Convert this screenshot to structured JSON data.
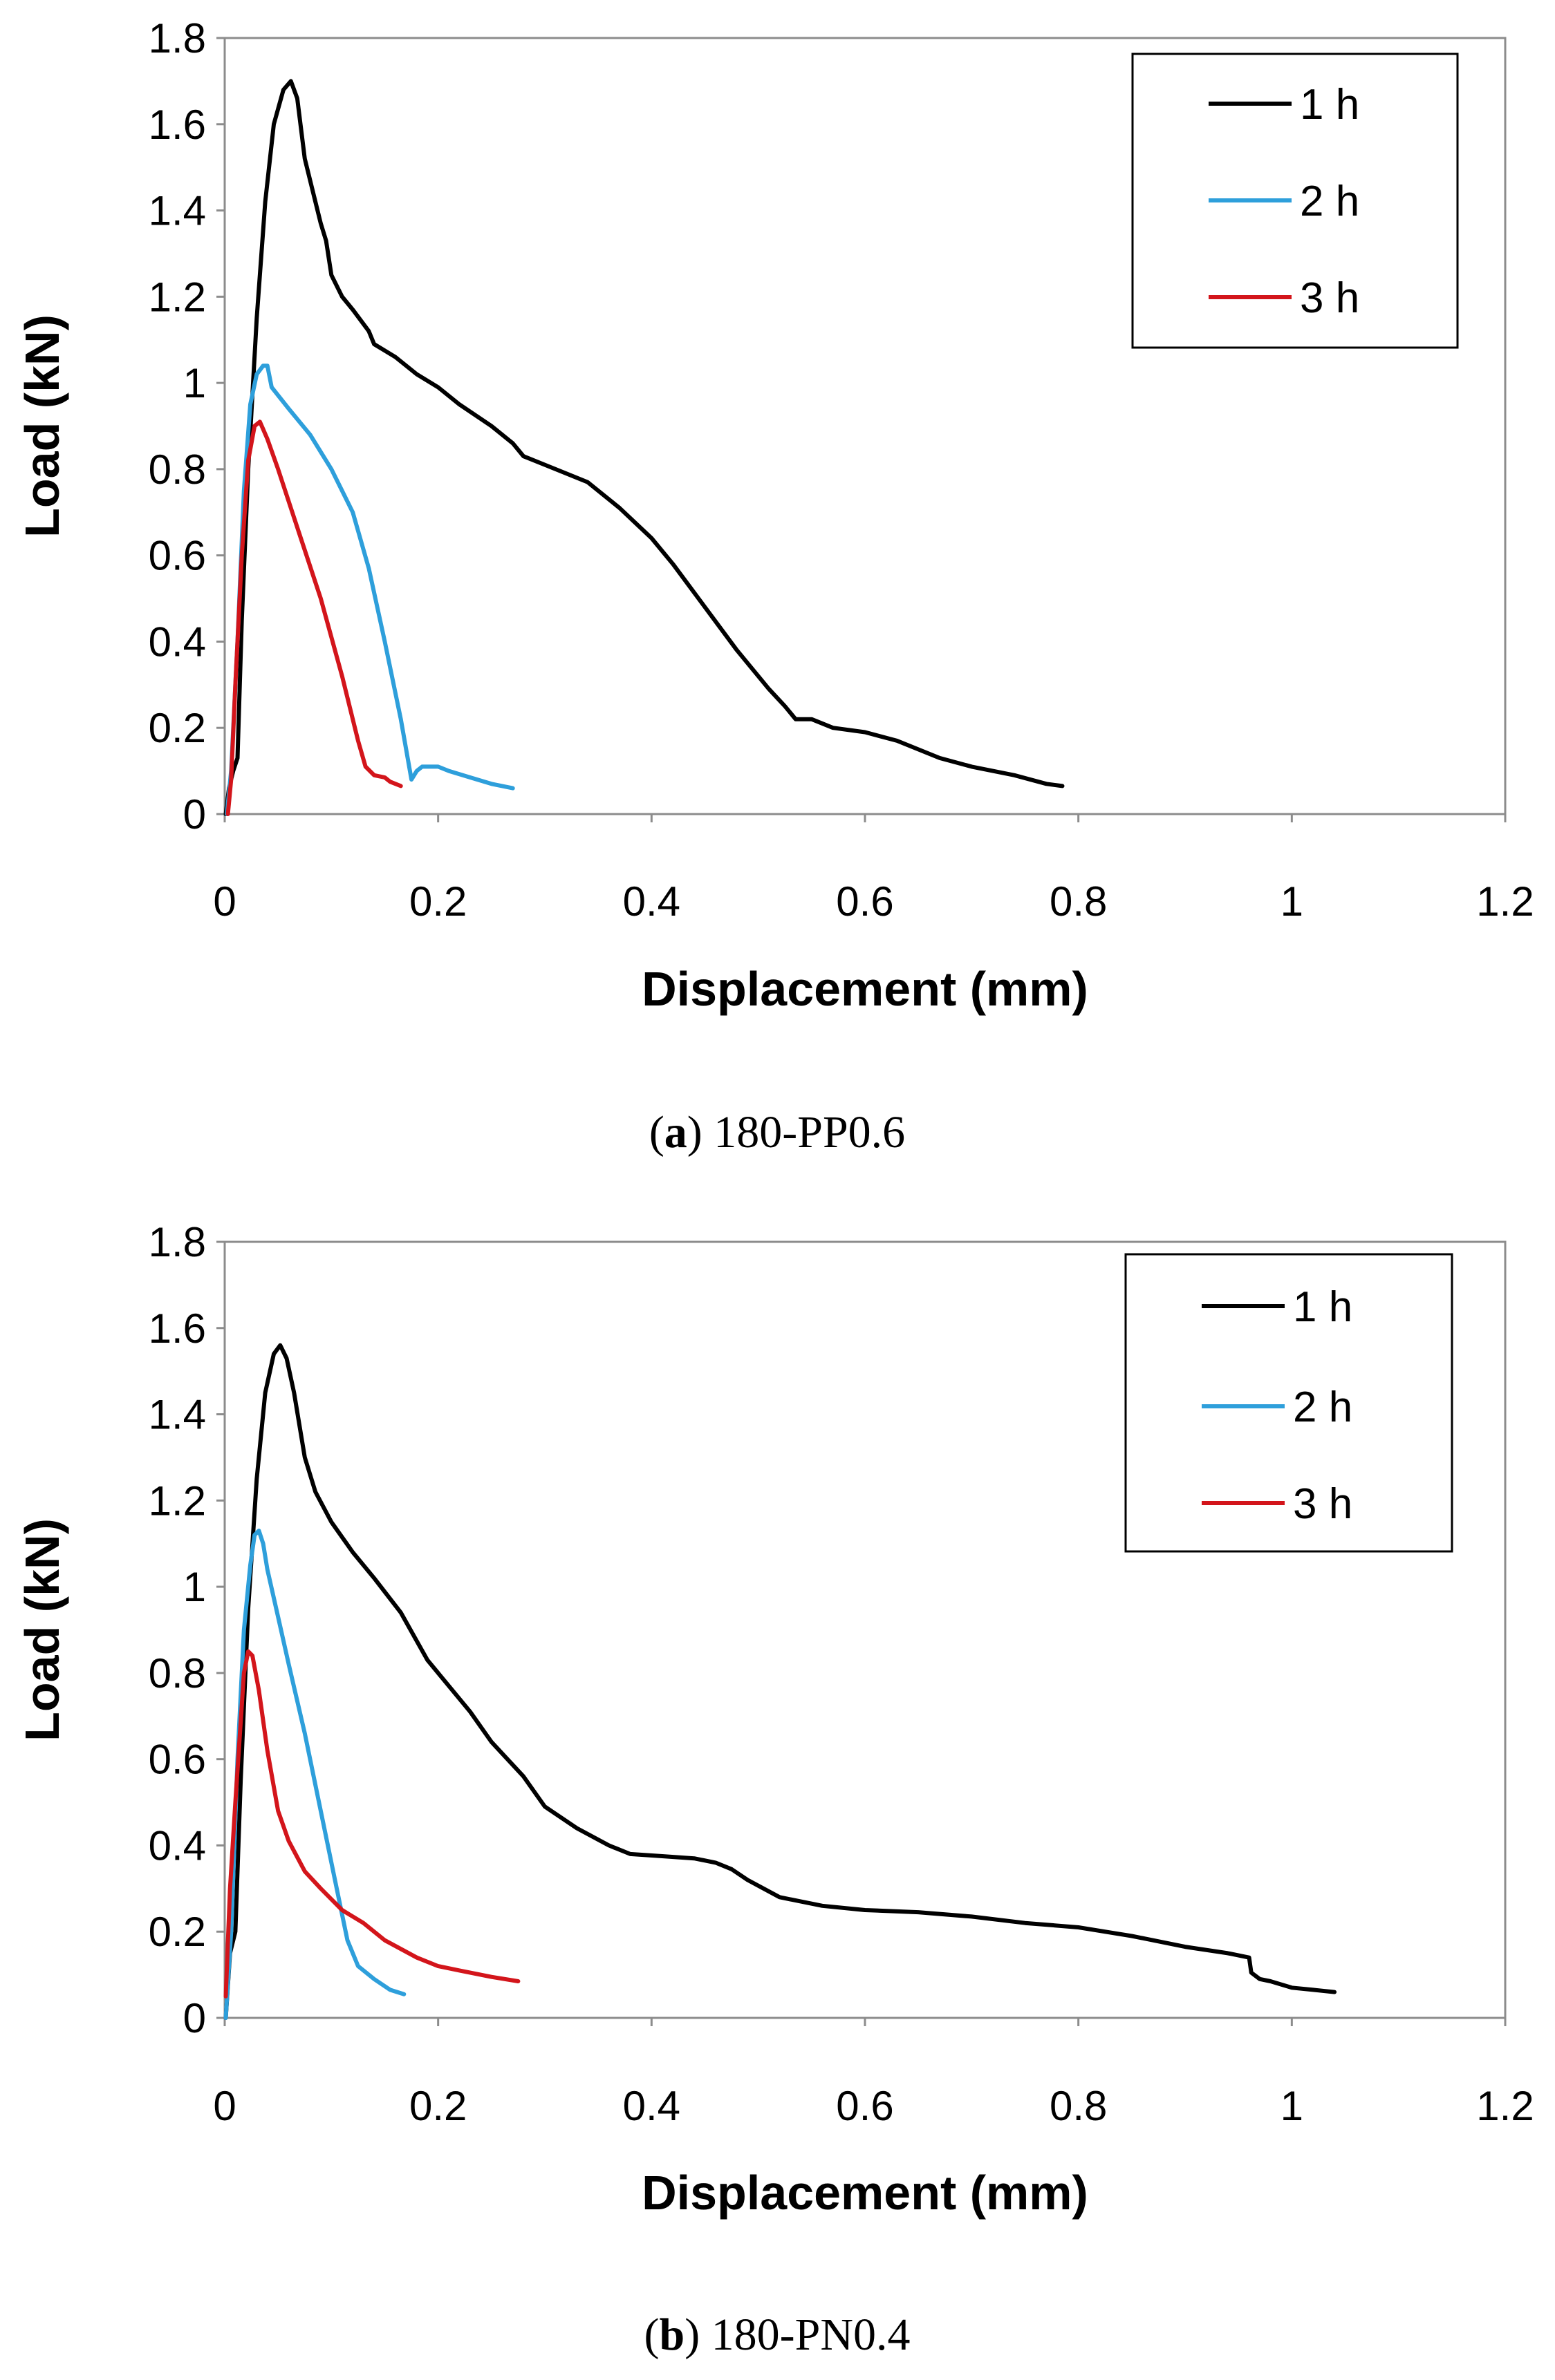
{
  "chart_data": [
    {
      "type": "line",
      "panel_letter": "a",
      "caption_text": "180-PP0.6",
      "xlabel": "Displacement (mm)",
      "ylabel": "Load (kN)",
      "xlim": [
        0,
        1.2
      ],
      "ylim": [
        0,
        1.8
      ],
      "xticks": [
        0,
        0.2,
        0.4,
        0.6,
        0.8,
        1,
        1.2
      ],
      "xtick_labels": [
        "0",
        "0.2",
        "0.4",
        "0.6",
        "0.8",
        "1",
        "1.2"
      ],
      "yticks": [
        0,
        0.2,
        0.4,
        0.6,
        0.8,
        1,
        1.2,
        1.4,
        1.6,
        1.8
      ],
      "ytick_labels": [
        "0",
        "0.2",
        "0.4",
        "0.6",
        "0.8",
        "1",
        "1.2",
        "1.4",
        "1.6",
        "1.8"
      ],
      "grid": false,
      "legend_position": "top-right",
      "series": [
        {
          "name": "1 h",
          "color": "#000000",
          "points": [
            [
              0.001,
              0.0
            ],
            [
              0.004,
              0.06
            ],
            [
              0.008,
              0.1
            ],
            [
              0.012,
              0.13
            ],
            [
              0.016,
              0.45
            ],
            [
              0.022,
              0.8
            ],
            [
              0.03,
              1.15
            ],
            [
              0.038,
              1.42
            ],
            [
              0.046,
              1.6
            ],
            [
              0.055,
              1.68
            ],
            [
              0.062,
              1.7
            ],
            [
              0.068,
              1.66
            ],
            [
              0.075,
              1.52
            ],
            [
              0.085,
              1.42
            ],
            [
              0.09,
              1.37
            ],
            [
              0.095,
              1.33
            ],
            [
              0.1,
              1.25
            ],
            [
              0.11,
              1.2
            ],
            [
              0.12,
              1.17
            ],
            [
              0.135,
              1.12
            ],
            [
              0.14,
              1.09
            ],
            [
              0.16,
              1.06
            ],
            [
              0.18,
              1.02
            ],
            [
              0.2,
              0.99
            ],
            [
              0.22,
              0.95
            ],
            [
              0.25,
              0.9
            ],
            [
              0.27,
              0.86
            ],
            [
              0.28,
              0.83
            ],
            [
              0.3,
              0.81
            ],
            [
              0.32,
              0.79
            ],
            [
              0.34,
              0.77
            ],
            [
              0.37,
              0.71
            ],
            [
              0.4,
              0.64
            ],
            [
              0.42,
              0.58
            ],
            [
              0.45,
              0.48
            ],
            [
              0.48,
              0.38
            ],
            [
              0.51,
              0.29
            ],
            [
              0.525,
              0.25
            ],
            [
              0.535,
              0.22
            ],
            [
              0.55,
              0.22
            ],
            [
              0.57,
              0.2
            ],
            [
              0.6,
              0.19
            ],
            [
              0.63,
              0.17
            ],
            [
              0.67,
              0.13
            ],
            [
              0.7,
              0.11
            ],
            [
              0.74,
              0.09
            ],
            [
              0.77,
              0.07
            ],
            [
              0.785,
              0.065
            ]
          ]
        },
        {
          "name": "2 h",
          "color": "#2E9FDB",
          "points": [
            [
              0.002,
              0.0
            ],
            [
              0.006,
              0.1
            ],
            [
              0.012,
              0.4
            ],
            [
              0.018,
              0.75
            ],
            [
              0.024,
              0.95
            ],
            [
              0.03,
              1.02
            ],
            [
              0.036,
              1.04
            ],
            [
              0.04,
              1.04
            ],
            [
              0.044,
              0.99
            ],
            [
              0.06,
              0.94
            ],
            [
              0.08,
              0.88
            ],
            [
              0.1,
              0.8
            ],
            [
              0.12,
              0.7
            ],
            [
              0.135,
              0.57
            ],
            [
              0.15,
              0.4
            ],
            [
              0.165,
              0.22
            ],
            [
              0.175,
              0.08
            ],
            [
              0.18,
              0.1
            ],
            [
              0.185,
              0.11
            ],
            [
              0.2,
              0.11
            ],
            [
              0.21,
              0.1
            ],
            [
              0.23,
              0.085
            ],
            [
              0.25,
              0.07
            ],
            [
              0.27,
              0.06
            ]
          ]
        },
        {
          "name": "3 h",
          "color": "#D3151B",
          "points": [
            [
              0.003,
              0.0
            ],
            [
              0.006,
              0.08
            ],
            [
              0.01,
              0.3
            ],
            [
              0.016,
              0.6
            ],
            [
              0.022,
              0.82
            ],
            [
              0.028,
              0.9
            ],
            [
              0.033,
              0.91
            ],
            [
              0.04,
              0.87
            ],
            [
              0.05,
              0.8
            ],
            [
              0.07,
              0.65
            ],
            [
              0.09,
              0.5
            ],
            [
              0.11,
              0.32
            ],
            [
              0.125,
              0.17
            ],
            [
              0.132,
              0.11
            ],
            [
              0.14,
              0.09
            ],
            [
              0.15,
              0.085
            ],
            [
              0.155,
              0.075
            ],
            [
              0.165,
              0.065
            ]
          ]
        }
      ]
    },
    {
      "type": "line",
      "panel_letter": "b",
      "caption_text": "180-PN0.4",
      "xlabel": "Displacement (mm)",
      "ylabel": "Load (kN)",
      "xlim": [
        0,
        1.2
      ],
      "ylim": [
        0,
        1.8
      ],
      "xticks": [
        0,
        0.2,
        0.4,
        0.6,
        0.8,
        1,
        1.2
      ],
      "xtick_labels": [
        "0",
        "0.2",
        "0.4",
        "0.6",
        "0.8",
        "1",
        "1.2"
      ],
      "yticks": [
        0,
        0.2,
        0.4,
        0.6,
        0.8,
        1,
        1.2,
        1.4,
        1.6,
        1.8
      ],
      "ytick_labels": [
        "0",
        "0.2",
        "0.4",
        "0.6",
        "0.8",
        "1",
        "1.2",
        "1.4",
        "1.6",
        "1.8"
      ],
      "grid": false,
      "legend_position": "top-right",
      "series": [
        {
          "name": "1 h",
          "color": "#000000",
          "points": [
            [
              0.001,
              0.0
            ],
            [
              0.005,
              0.15
            ],
            [
              0.01,
              0.2
            ],
            [
              0.015,
              0.55
            ],
            [
              0.022,
              0.95
            ],
            [
              0.03,
              1.25
            ],
            [
              0.038,
              1.45
            ],
            [
              0.046,
              1.54
            ],
            [
              0.052,
              1.56
            ],
            [
              0.058,
              1.53
            ],
            [
              0.065,
              1.45
            ],
            [
              0.075,
              1.3
            ],
            [
              0.085,
              1.22
            ],
            [
              0.1,
              1.15
            ],
            [
              0.12,
              1.08
            ],
            [
              0.14,
              1.02
            ],
            [
              0.165,
              0.94
            ],
            [
              0.19,
              0.83
            ],
            [
              0.21,
              0.77
            ],
            [
              0.23,
              0.71
            ],
            [
              0.25,
              0.64
            ],
            [
              0.28,
              0.56
            ],
            [
              0.3,
              0.49
            ],
            [
              0.33,
              0.44
            ],
            [
              0.36,
              0.4
            ],
            [
              0.38,
              0.38
            ],
            [
              0.41,
              0.375
            ],
            [
              0.44,
              0.37
            ],
            [
              0.46,
              0.36
            ],
            [
              0.475,
              0.345
            ],
            [
              0.49,
              0.32
            ],
            [
              0.52,
              0.28
            ],
            [
              0.56,
              0.26
            ],
            [
              0.6,
              0.25
            ],
            [
              0.65,
              0.245
            ],
            [
              0.7,
              0.235
            ],
            [
              0.75,
              0.22
            ],
            [
              0.8,
              0.21
            ],
            [
              0.85,
              0.19
            ],
            [
              0.9,
              0.165
            ],
            [
              0.94,
              0.15
            ],
            [
              0.96,
              0.14
            ],
            [
              0.962,
              0.105
            ],
            [
              0.97,
              0.09
            ],
            [
              0.98,
              0.085
            ],
            [
              1.0,
              0.07
            ],
            [
              1.02,
              0.065
            ],
            [
              1.04,
              0.06
            ]
          ]
        },
        {
          "name": "2 h",
          "color": "#2E9FDB",
          "points": [
            [
              0.001,
              0.0
            ],
            [
              0.006,
              0.2
            ],
            [
              0.012,
              0.6
            ],
            [
              0.018,
              0.9
            ],
            [
              0.024,
              1.05
            ],
            [
              0.028,
              1.12
            ],
            [
              0.032,
              1.13
            ],
            [
              0.036,
              1.1
            ],
            [
              0.04,
              1.04
            ],
            [
              0.05,
              0.93
            ],
            [
              0.06,
              0.82
            ],
            [
              0.075,
              0.66
            ],
            [
              0.09,
              0.48
            ],
            [
              0.105,
              0.3
            ],
            [
              0.115,
              0.18
            ],
            [
              0.125,
              0.12
            ],
            [
              0.14,
              0.09
            ],
            [
              0.155,
              0.065
            ],
            [
              0.168,
              0.055
            ]
          ]
        },
        {
          "name": "3 h",
          "color": "#D3151B",
          "points": [
            [
              0.001,
              0.05
            ],
            [
              0.005,
              0.3
            ],
            [
              0.01,
              0.5
            ],
            [
              0.014,
              0.65
            ],
            [
              0.018,
              0.8
            ],
            [
              0.022,
              0.85
            ],
            [
              0.026,
              0.84
            ],
            [
              0.032,
              0.76
            ],
            [
              0.04,
              0.62
            ],
            [
              0.05,
              0.48
            ],
            [
              0.06,
              0.41
            ],
            [
              0.075,
              0.34
            ],
            [
              0.09,
              0.3
            ],
            [
              0.11,
              0.25
            ],
            [
              0.13,
              0.22
            ],
            [
              0.15,
              0.18
            ],
            [
              0.18,
              0.14
            ],
            [
              0.2,
              0.12
            ],
            [
              0.22,
              0.11
            ],
            [
              0.25,
              0.095
            ],
            [
              0.275,
              0.085
            ]
          ]
        }
      ]
    }
  ]
}
